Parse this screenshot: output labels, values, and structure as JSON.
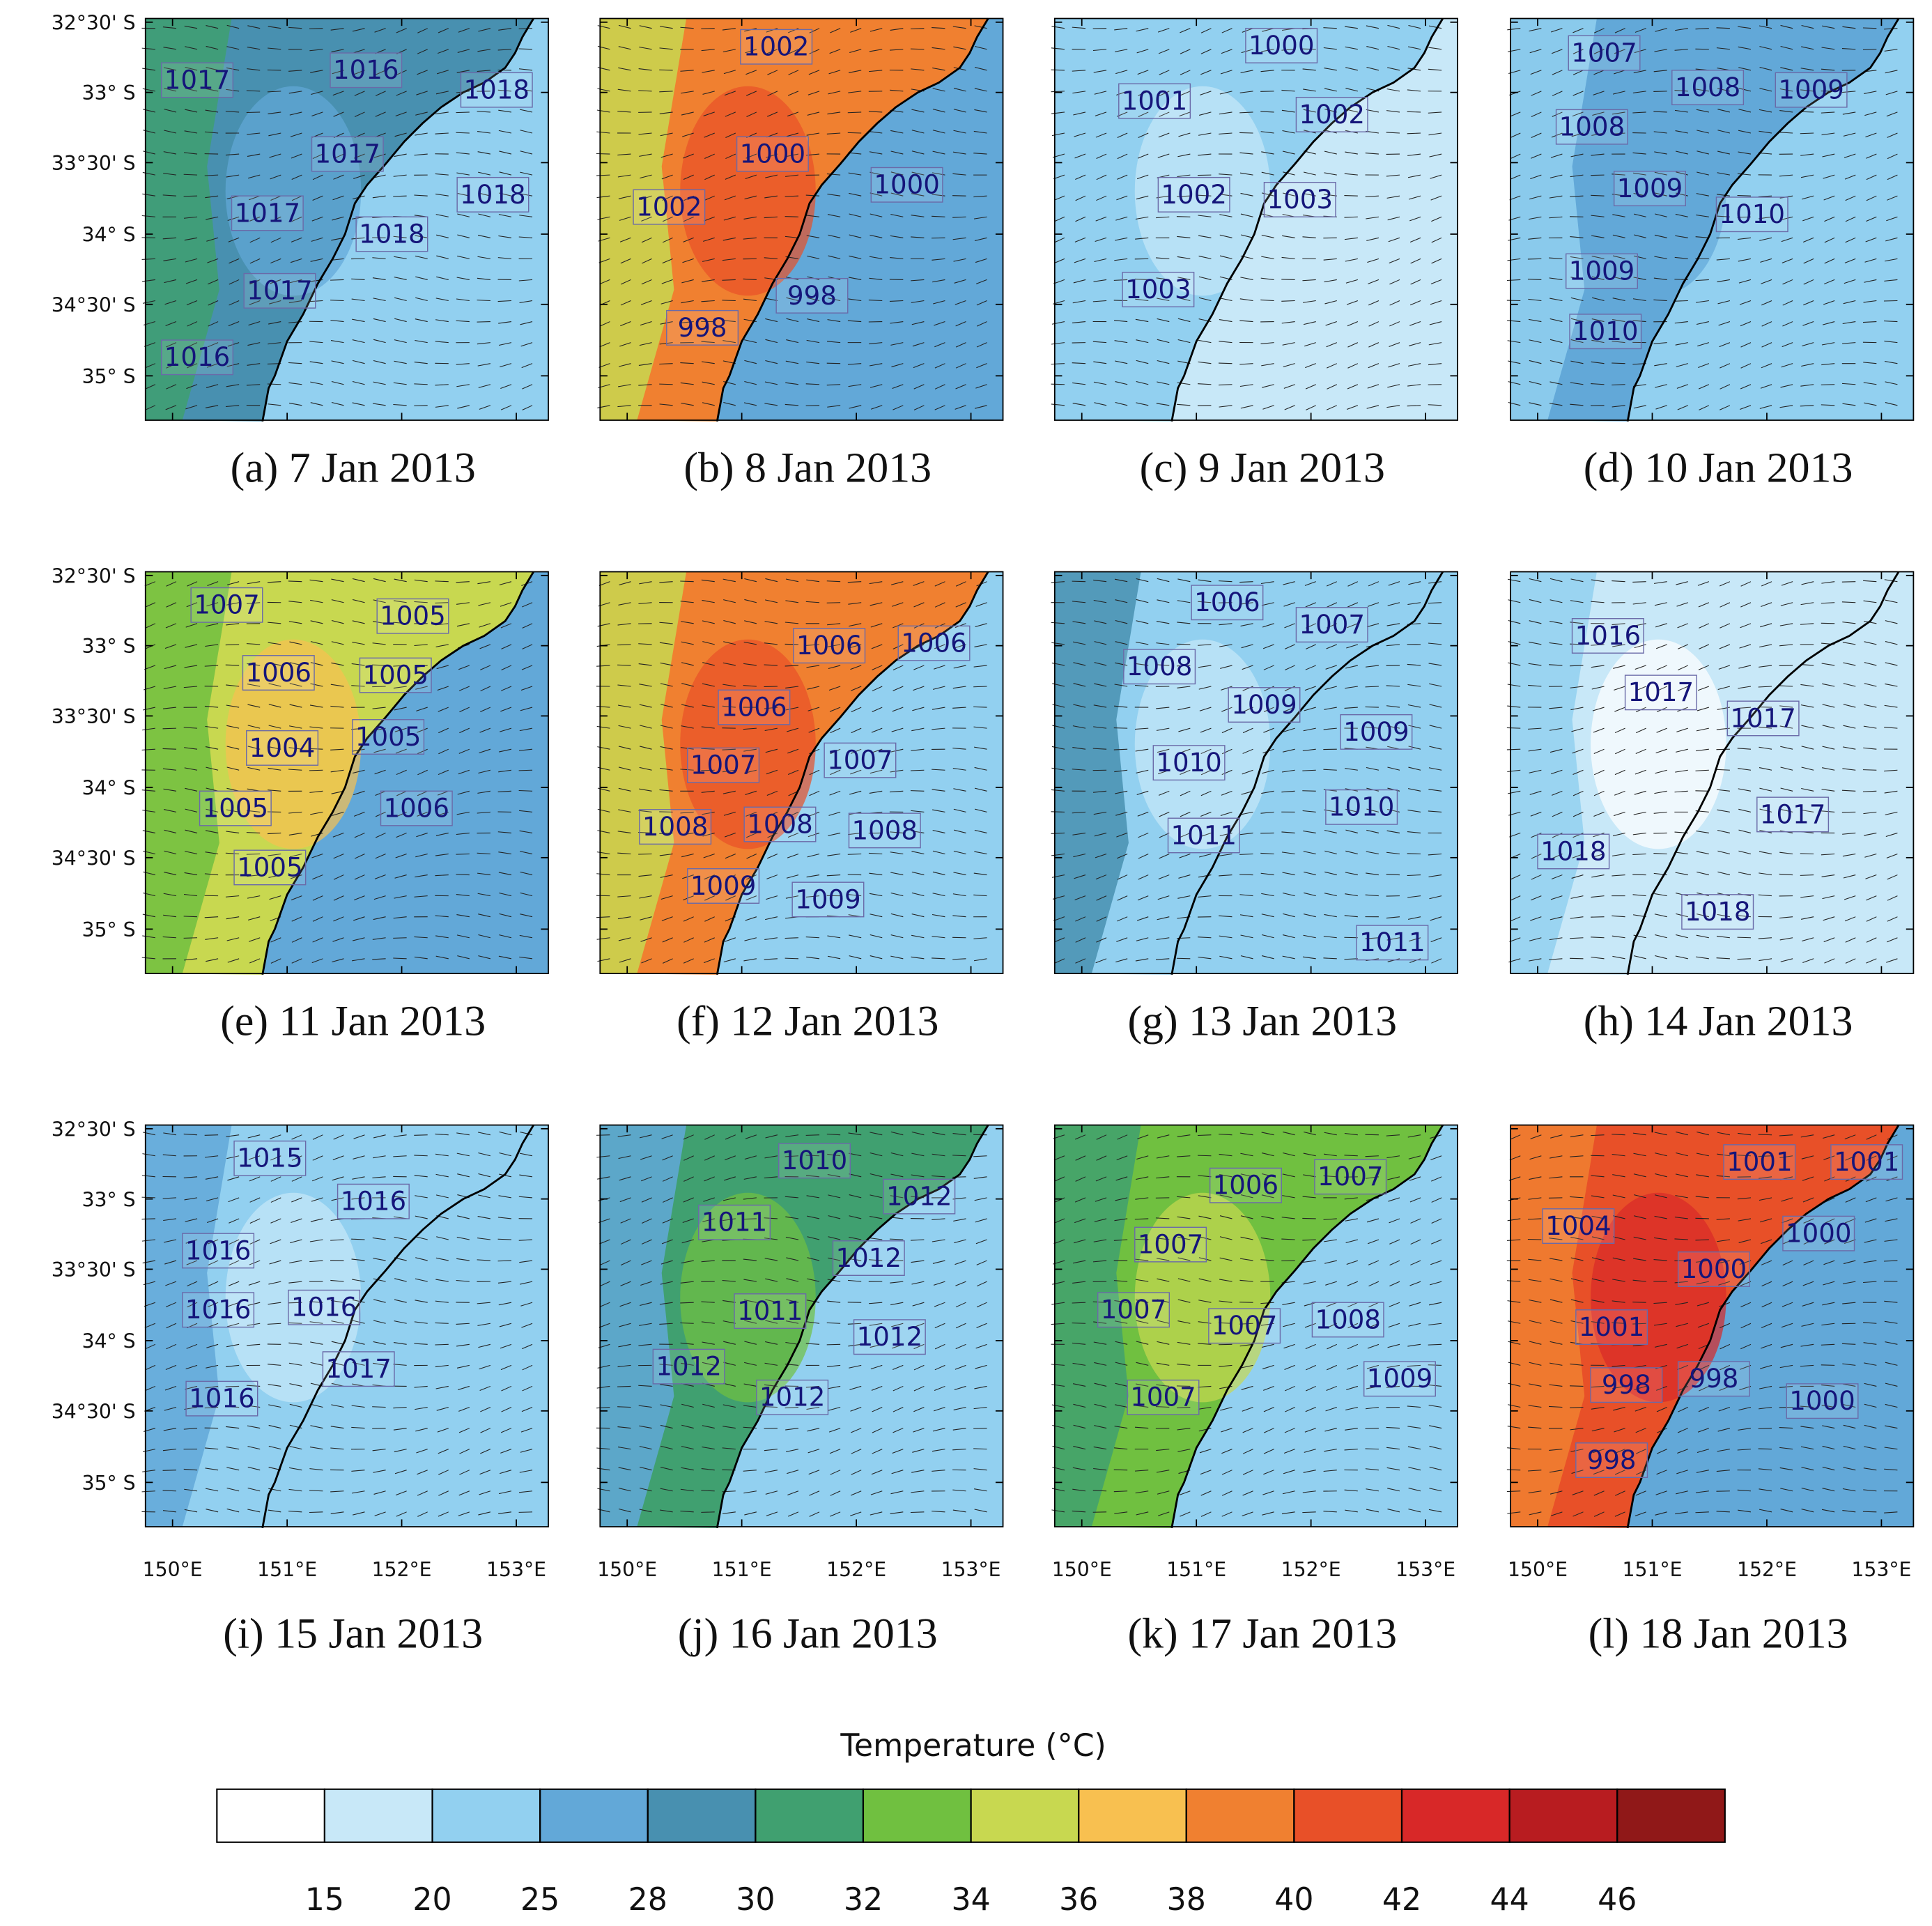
{
  "map_axes": {
    "y_labels": [
      "32°30' S",
      "33° S",
      "33°30' S",
      "34° S",
      "34°30' S",
      "35° S"
    ],
    "x_labels": [
      "150°E",
      "151°E",
      "152°E",
      "153°E"
    ]
  },
  "panels": [
    {
      "caption": "(a) 7 Jan 2013",
      "pressure_labels": [
        "1017",
        "1016",
        "1018",
        "1017",
        "1018",
        "1017",
        "1018",
        "1017",
        "1016"
      ]
    },
    {
      "caption": "(b) 8 Jan 2013",
      "pressure_labels": [
        "1002",
        "1000",
        "1000",
        "1002",
        "998",
        "998"
      ]
    },
    {
      "caption": "(c) 9 Jan 2013",
      "pressure_labels": [
        "1000",
        "1001",
        "1002",
        "1002",
        "1003",
        "1003"
      ]
    },
    {
      "caption": "(d) 10 Jan 2013",
      "pressure_labels": [
        "1007",
        "1008",
        "1009",
        "1008",
        "1009",
        "1010",
        "1009",
        "1010"
      ]
    },
    {
      "caption": "(e) 11 Jan 2013",
      "pressure_labels": [
        "1007",
        "1005",
        "1006",
        "1005",
        "1004",
        "1005",
        "1005",
        "1006",
        "1005"
      ]
    },
    {
      "caption": "(f) 12 Jan 2013",
      "pressure_labels": [
        "1006",
        "1006",
        "1006",
        "1007",
        "1007",
        "1008",
        "1008",
        "1008",
        "1009",
        "1009"
      ]
    },
    {
      "caption": "(g) 13 Jan 2013",
      "pressure_labels": [
        "1006",
        "1007",
        "1008",
        "1009",
        "1009",
        "1010",
        "1010",
        "1011",
        "1011"
      ]
    },
    {
      "caption": "(h) 14 Jan 2013",
      "pressure_labels": [
        "1016",
        "1017",
        "1017",
        "1017",
        "1018",
        "1018"
      ]
    },
    {
      "caption": "(i) 15 Jan 2013",
      "pressure_labels": [
        "1015",
        "1016",
        "1016",
        "1016",
        "1016",
        "1017",
        "1016"
      ]
    },
    {
      "caption": "(j) 16 Jan 2013",
      "pressure_labels": [
        "1010",
        "1012",
        "1011",
        "1012",
        "1011",
        "1012",
        "1012",
        "1012"
      ]
    },
    {
      "caption": "(k) 17 Jan 2013",
      "pressure_labels": [
        "1006",
        "1007",
        "1007",
        "1008",
        "1007",
        "1007",
        "1009",
        "1007"
      ]
    },
    {
      "caption": "(l) 18 Jan 2013",
      "pressure_labels": [
        "1001",
        "1001",
        "1004",
        "1000",
        "1000",
        "1001",
        "998",
        "998",
        "1000",
        "998"
      ]
    }
  ],
  "colorbar": {
    "title": "Temperature   (°C)",
    "ticks": [
      15,
      20,
      25,
      28,
      30,
      32,
      34,
      36,
      38,
      40,
      42,
      44,
      46
    ],
    "colors": [
      "#ffffff",
      "#c8e8f8",
      "#92d0f0",
      "#62a8d8",
      "#4890b0",
      "#40a070",
      "#70c040",
      "#c8d850",
      "#f8c050",
      "#f08030",
      "#e85028",
      "#d82828",
      "#b81c20",
      "#901818"
    ]
  }
}
